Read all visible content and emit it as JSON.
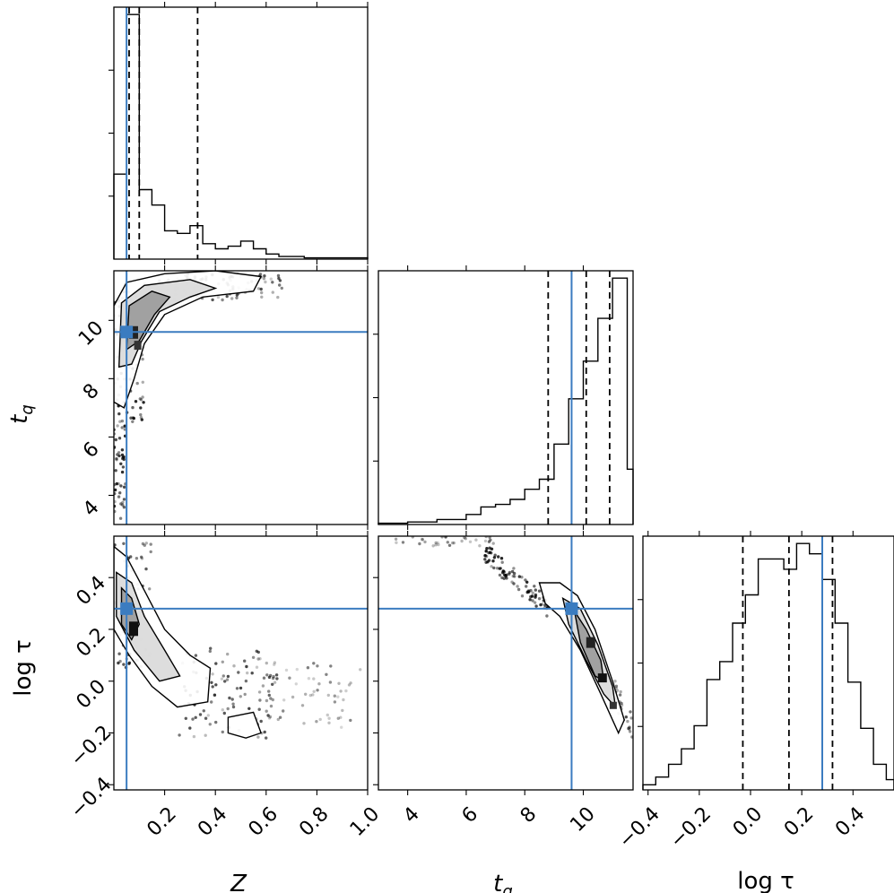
{
  "chart_data": {
    "type": "corner",
    "parameters": [
      {
        "key": "Z",
        "label": "Z",
        "range": [
          0.0,
          1.0
        ],
        "ticks": [
          0.2,
          0.4,
          0.6,
          0.8,
          1.0
        ],
        "tick_labels": [
          "0.2",
          "0.4",
          "0.6",
          "0.8",
          "1.0"
        ]
      },
      {
        "key": "t_q",
        "label": "t",
        "label_sub": "q",
        "range": [
          3.0,
          11.7
        ],
        "ticks": [
          4,
          6,
          8,
          10
        ],
        "tick_labels": [
          "4",
          "6",
          "8",
          "10"
        ]
      },
      {
        "key": "log_tau",
        "label": "log τ",
        "range": [
          -0.42,
          0.56
        ],
        "ticks": [
          -0.4,
          -0.2,
          0.0,
          0.2,
          0.4
        ],
        "tick_labels": [
          "−0.4",
          "−0.2",
          "0.0",
          "0.2",
          "0.4"
        ]
      }
    ],
    "truth": {
      "Z": 0.05,
      "t_q": 9.6,
      "log_tau": 0.28
    },
    "quantiles": {
      "Z": [
        0.06,
        0.1,
        0.33
      ],
      "t_q": [
        8.8,
        10.1,
        10.9
      ],
      "log_tau": [
        -0.03,
        0.15,
        0.32
      ]
    },
    "histograms": {
      "Z": {
        "edges": [
          0.0,
          0.05,
          0.1,
          0.15,
          0.2,
          0.25,
          0.3,
          0.35,
          0.4,
          0.45,
          0.5,
          0.55,
          0.6,
          0.65,
          0.7,
          0.75,
          0.8,
          0.85,
          0.9,
          0.95,
          1.0
        ],
        "counts": [
          0.33,
          0.95,
          0.27,
          0.21,
          0.11,
          0.1,
          0.13,
          0.06,
          0.04,
          0.05,
          0.07,
          0.04,
          0.02,
          0.01,
          0.01,
          0.005,
          0.005,
          0.005,
          0.005,
          0.005
        ]
      },
      "t_q": {
        "edges": [
          3.0,
          3.5,
          4.0,
          4.5,
          5.0,
          5.5,
          6.0,
          6.5,
          7.0,
          7.5,
          8.0,
          8.5,
          9.0,
          9.5,
          10.0,
          10.5,
          11.0,
          11.5,
          11.7
        ],
        "counts": [
          0.005,
          0.005,
          0.01,
          0.01,
          0.02,
          0.02,
          0.04,
          0.07,
          0.08,
          0.1,
          0.14,
          0.18,
          0.32,
          0.5,
          0.65,
          0.82,
          0.98,
          0.22
        ]
      },
      "log_tau": {
        "edges": [
          -0.42,
          -0.37,
          -0.32,
          -0.27,
          -0.22,
          -0.17,
          -0.12,
          -0.07,
          -0.02,
          0.03,
          0.08,
          0.13,
          0.18,
          0.23,
          0.28,
          0.33,
          0.38,
          0.43,
          0.48,
          0.53,
          0.56
        ],
        "counts": [
          0.02,
          0.05,
          0.1,
          0.16,
          0.25,
          0.43,
          0.5,
          0.65,
          0.76,
          0.9,
          0.9,
          0.86,
          0.96,
          0.92,
          0.82,
          0.65,
          0.42,
          0.24,
          0.1,
          0.04
        ]
      }
    }
  }
}
